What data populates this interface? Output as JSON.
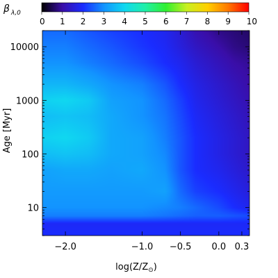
{
  "chart_data": {
    "type": "heatmap",
    "colorbar": {
      "label": "β",
      "label_sub": "λ,0",
      "ticks": [
        "0",
        "1",
        "2",
        "3",
        "4",
        "5",
        "6",
        "7",
        "8",
        "9",
        "10"
      ],
      "range": [
        0,
        10
      ],
      "colormap": [
        "#000000",
        "#3a0ea8",
        "#1a2cff",
        "#1294ff",
        "#10d8f0",
        "#20f0a8",
        "#30f030",
        "#c8f020",
        "#ffd000",
        "#ff7800",
        "#ff0000"
      ]
    },
    "xlabel": "log(Z/Z",
    "xlabel_sub": "⊙",
    "xlabel_close": ")",
    "ylabel": "Age",
    "ylabel_unit": "[Myr]",
    "x_ticks": [
      {
        "value": -2.0,
        "label": "−2.0"
      },
      {
        "value": -1.0,
        "label": "−1.0"
      },
      {
        "value": -0.5,
        "label": "−0.5"
      },
      {
        "value": 0.0,
        "label": "0.0"
      },
      {
        "value": 0.3,
        "label": "0.3"
      }
    ],
    "y_ticks": [
      {
        "value": 10,
        "label": "10"
      },
      {
        "value": 100,
        "label": "100"
      },
      {
        "value": 1000,
        "label": "1000"
      },
      {
        "value": 10000,
        "label": "10000"
      }
    ],
    "xlim": [
      -2.3,
      0.4
    ],
    "ylim": [
      3,
      20000
    ],
    "y_scale": "log",
    "x": [
      -2.3,
      -2.0,
      -1.7,
      -1.4,
      -1.0,
      -0.7,
      -0.5,
      -0.3,
      0.0,
      0.2,
      0.4
    ],
    "y": [
      3,
      5,
      7,
      10,
      20,
      50,
      100,
      200,
      500,
      1000,
      2000,
      5000,
      10000,
      20000
    ],
    "z": [
      [
        2.0,
        2.0,
        2.0,
        2.0,
        2.0,
        2.0,
        2.0,
        2.0,
        2.0,
        2.0,
        2.0
      ],
      [
        1.9,
        1.9,
        1.9,
        1.9,
        1.9,
        1.9,
        1.9,
        1.9,
        1.9,
        1.9,
        1.9
      ],
      [
        2.8,
        2.8,
        2.8,
        2.8,
        2.8,
        2.7,
        2.6,
        2.5,
        2.5,
        2.4,
        2.3
      ],
      [
        3.0,
        3.0,
        3.0,
        3.0,
        3.0,
        2.9,
        2.8,
        2.6,
        2.3,
        2.0,
        1.8
      ],
      [
        3.1,
        3.1,
        3.1,
        3.1,
        3.1,
        3.2,
        2.6,
        2.2,
        2.0,
        1.8,
        1.6
      ],
      [
        3.2,
        3.3,
        3.3,
        3.2,
        3.3,
        3.0,
        2.4,
        2.0,
        1.8,
        1.6,
        1.4
      ],
      [
        3.6,
        3.7,
        3.6,
        3.3,
        3.2,
        2.9,
        2.4,
        2.0,
        1.7,
        1.5,
        1.3
      ],
      [
        3.9,
        4.0,
        3.8,
        3.3,
        3.2,
        2.8,
        2.4,
        2.0,
        1.7,
        1.5,
        1.3
      ],
      [
        3.6,
        3.7,
        3.6,
        3.3,
        3.0,
        2.7,
        2.3,
        1.9,
        1.6,
        1.4,
        1.2
      ],
      [
        3.9,
        4.0,
        3.8,
        3.2,
        3.0,
        2.6,
        2.2,
        1.8,
        1.5,
        1.3,
        1.1
      ],
      [
        3.5,
        3.5,
        3.3,
        3.0,
        2.8,
        2.4,
        2.0,
        1.7,
        1.4,
        1.2,
        1.0
      ],
      [
        3.0,
        3.0,
        2.8,
        2.6,
        2.3,
        2.0,
        1.8,
        1.5,
        1.2,
        1.0,
        0.9
      ],
      [
        2.8,
        2.8,
        2.6,
        2.4,
        2.1,
        1.9,
        1.6,
        1.3,
        1.0,
        0.8,
        0.7
      ],
      [
        2.6,
        2.6,
        2.4,
        2.2,
        2.0,
        1.8,
        1.5,
        1.1,
        0.8,
        0.7,
        0.6
      ]
    ],
    "grid": false
  }
}
